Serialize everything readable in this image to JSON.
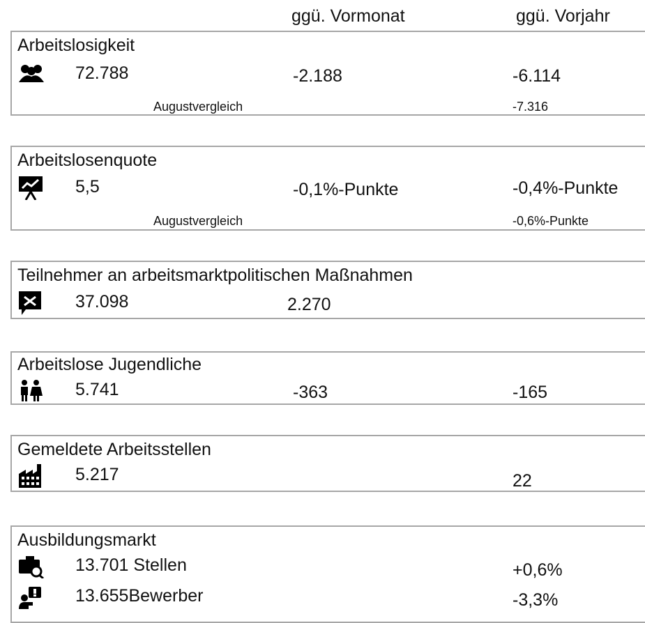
{
  "header": {
    "columns": [
      "ggü. Vormonat",
      "ggü. Vorjahr"
    ]
  },
  "sections": [
    {
      "title": "Arbeitslosigkeit",
      "rows": [
        {
          "value": "72.788",
          "vormonat": "-2.188",
          "vorjahr": "-6.114"
        }
      ],
      "comparison": {
        "label": "Augustvergleich",
        "vorjahr": "-7.316"
      }
    },
    {
      "title": "Arbeitslosenquote",
      "rows": [
        {
          "value": "5,5",
          "vormonat": "-0,1%-Punkte",
          "vorjahr": "-0,4%-Punkte"
        }
      ],
      "comparison": {
        "label": "Augustvergleich",
        "vorjahr": "-0,6%-Punkte"
      }
    },
    {
      "title": "Teilnehmer an arbeitsmarktpolitischen Maßnahmen",
      "rows": [
        {
          "value": "37.098",
          "vormonat": "2.270"
        }
      ]
    },
    {
      "title": "Arbeitslose Jugendliche",
      "rows": [
        {
          "value": "5.741",
          "vormonat": "-363",
          "vorjahr": "-165"
        }
      ]
    },
    {
      "title": "Gemeldete Arbeitsstellen",
      "rows": [
        {
          "value": "5.217",
          "vorjahr": "22"
        }
      ]
    },
    {
      "title": "Ausbildungsmarkt",
      "rows": [
        {
          "value": "13.701 Stellen",
          "vorjahr": "+0,6%"
        },
        {
          "value": "13.655Bewerber",
          "vorjahr": "-3,3%"
        }
      ]
    }
  ]
}
